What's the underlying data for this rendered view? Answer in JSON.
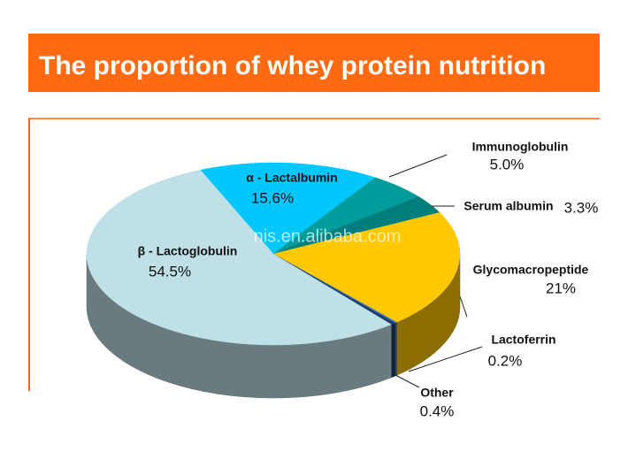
{
  "chart_data": {
    "type": "pie",
    "title": "The proportion of whey protein nutrition",
    "watermark": "nis.en.alibaba.com",
    "categories": [
      "α - Lactalbumin",
      "Immunoglobulin",
      "Serum albumin",
      "Glycomacropeptide",
      "Lactoferrin",
      "Other",
      "β - Lactoglobulin"
    ],
    "values": [
      15.6,
      5.0,
      3.3,
      21,
      0.2,
      0.4,
      54.5
    ],
    "value_labels": [
      "15.6%",
      "5.0%",
      "3.3%",
      "21%",
      "0.2%",
      "0.4%",
      "54.5%"
    ],
    "colors": [
      "#00c8ff",
      "#009b9b",
      "#007d7d",
      "#ffc800",
      "#3a78c0",
      "#1d3f70",
      "#bfe0e6"
    ]
  }
}
